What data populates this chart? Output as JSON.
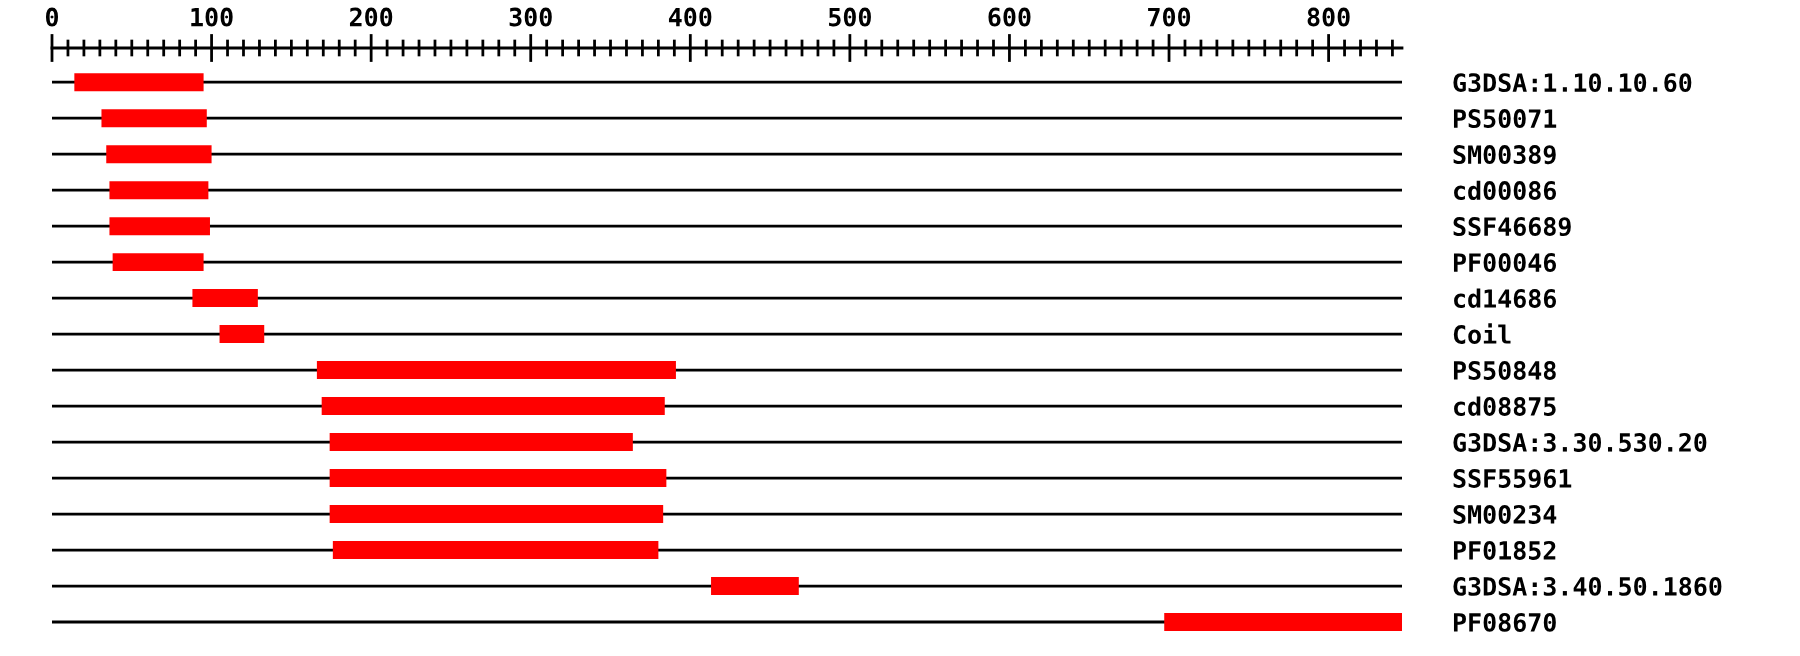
{
  "chart_data": {
    "type": "bar",
    "orientation": "horizontal",
    "categories": [
      "G3DSA:1.10.10.60",
      "PS50071",
      "SM00389",
      "cd00086",
      "SSF46689",
      "PF00046",
      "cd14686",
      "Coil",
      "PS50848",
      "cd08875",
      "G3DSA:3.30.530.20",
      "SSF55961",
      "SM00234",
      "PF01852",
      "G3DSA:3.40.50.1860",
      "PF08670"
    ],
    "base": [
      14,
      31,
      34,
      36,
      36,
      38,
      88,
      105,
      166,
      169,
      174,
      174,
      174,
      176,
      413,
      697
    ],
    "values": [
      81,
      66,
      66,
      62,
      63,
      57,
      41,
      28,
      225,
      215,
      190,
      211,
      209,
      204,
      55,
      149
    ],
    "color": "#ff0000",
    "xlim": [
      0,
      846
    ],
    "xticks": [
      0,
      {
        "value": 10,
        "label": null
      },
      {
        "value": 20,
        "label": null
      },
      {
        "value": 30,
        "label": null
      },
      {
        "value": 40,
        "label": null
      },
      {
        "value": 50,
        "label": null
      },
      {
        "value": 60,
        "label": null
      },
      {
        "value": 70,
        "label": null
      },
      {
        "value": 80,
        "label": null
      },
      {
        "value": 90,
        "label": null
      },
      100,
      {
        "value": 110,
        "label": null
      },
      {
        "value": 120,
        "label": null
      },
      {
        "value": 130,
        "label": null
      },
      {
        "value": 140,
        "label": null
      },
      {
        "value": 150,
        "label": null
      },
      {
        "value": 160,
        "label": null
      },
      {
        "value": 170,
        "label": null
      },
      {
        "value": 180,
        "label": null
      },
      {
        "value": 190,
        "label": null
      },
      200,
      {
        "value": 210,
        "label": null
      },
      {
        "value": 220,
        "label": null
      },
      {
        "value": 230,
        "label": null
      },
      {
        "value": 240,
        "label": null
      },
      {
        "value": 250,
        "label": null
      },
      {
        "value": 260,
        "label": null
      },
      {
        "value": 270,
        "label": null
      },
      {
        "value": 280,
        "label": null
      },
      {
        "value": 290,
        "label": null
      },
      300,
      {
        "value": 310,
        "label": null
      },
      {
        "value": 320,
        "label": null
      },
      {
        "value": 330,
        "label": null
      },
      {
        "value": 340,
        "label": null
      },
      {
        "value": 350,
        "label": null
      },
      {
        "value": 360,
        "label": null
      },
      {
        "value": 370,
        "label": null
      },
      {
        "value": 380,
        "label": null
      },
      {
        "value": 390,
        "label": null
      },
      400,
      {
        "value": 410,
        "label": null
      },
      {
        "value": 420,
        "label": null
      },
      {
        "value": 430,
        "label": null
      },
      {
        "value": 440,
        "label": null
      },
      {
        "value": 450,
        "label": null
      },
      {
        "value": 460,
        "label": null
      },
      {
        "value": 470,
        "label": null
      },
      {
        "value": 480,
        "label": null
      },
      {
        "value": 490,
        "label": null
      },
      500,
      {
        "value": 510,
        "label": null
      },
      {
        "value": 520,
        "label": null
      },
      {
        "value": 530,
        "label": null
      },
      {
        "value": 540,
        "label": null
      },
      {
        "value": 550,
        "label": null
      },
      {
        "value": 560,
        "label": null
      },
      {
        "value": 570,
        "label": null
      },
      {
        "value": 580,
        "label": null
      },
      {
        "value": 590,
        "label": null
      },
      600,
      {
        "value": 610,
        "label": null
      },
      {
        "value": 620,
        "label": null
      },
      {
        "value": 630,
        "label": null
      },
      {
        "value": 640,
        "label": null
      },
      {
        "value": 650,
        "label": null
      },
      {
        "value": 660,
        "label": null
      },
      {
        "value": 670,
        "label": null
      },
      {
        "value": 680,
        "label": null
      },
      {
        "value": 690,
        "label": null
      },
      700,
      {
        "value": 710,
        "label": null
      },
      {
        "value": 720,
        "label": null
      },
      {
        "value": 730,
        "label": null
      },
      {
        "value": 740,
        "label": null
      },
      {
        "value": 750,
        "label": null
      },
      {
        "value": 760,
        "label": null
      },
      {
        "value": 770,
        "label": null
      },
      {
        "value": 780,
        "label": null
      },
      {
        "value": 790,
        "label": null
      },
      800,
      {
        "value": 810,
        "label": null
      },
      {
        "value": 820,
        "label": null
      },
      {
        "value": 830,
        "label": null
      },
      {
        "value": 840,
        "label": null
      }
    ],
    "grid": "y"
  }
}
